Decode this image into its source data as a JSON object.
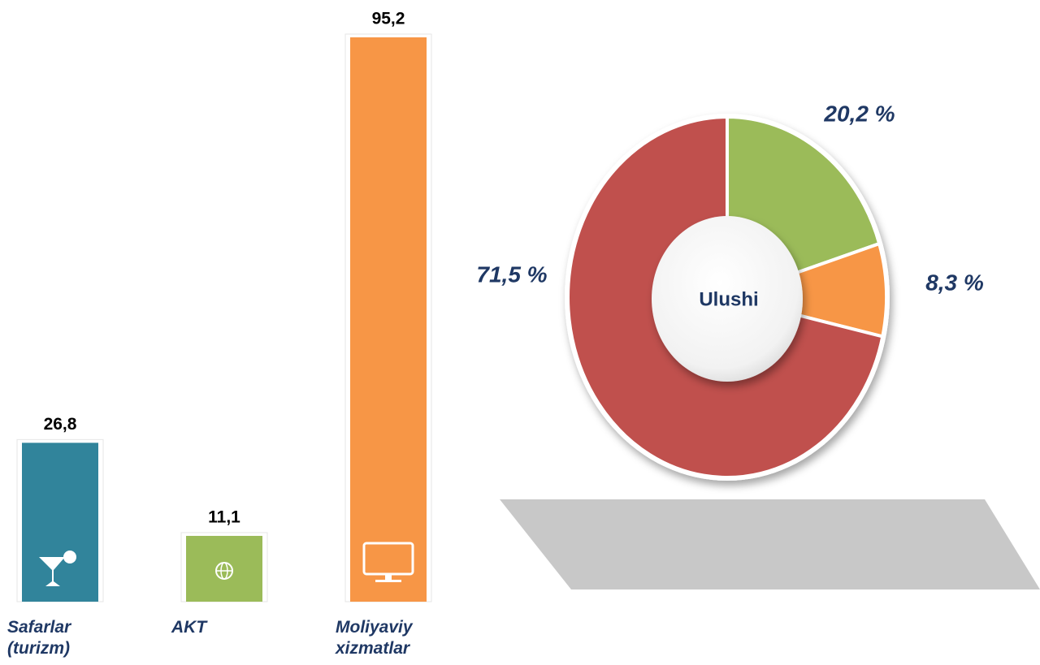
{
  "chart_data": [
    {
      "type": "bar",
      "categories": [
        "Safarlar (turizm)",
        "AKT",
        "Moliyaviy xizmatlar"
      ],
      "values": [
        26.8,
        11.1,
        95.2
      ],
      "value_labels": [
        "26,8",
        "11,1",
        "95,2"
      ],
      "colors": [
        "#31849b",
        "#9bbb59",
        "#f79646"
      ]
    },
    {
      "type": "donut",
      "center_label": "Ulushi",
      "values": [
        20.2,
        8.3,
        71.5
      ],
      "value_labels": [
        "20,2 %",
        "8,3 %",
        "71,5 %"
      ],
      "colors": [
        "#9bbb59",
        "#f79646",
        "#c0504d"
      ]
    }
  ]
}
